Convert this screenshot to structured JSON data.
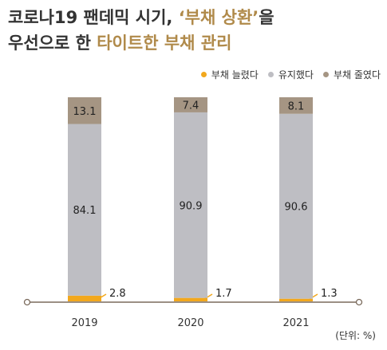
{
  "title": {
    "line1_plain": "코로나19 팬데믹 시기, ",
    "line1_accent": "‘부채 상환’",
    "line1_suffix": "을",
    "line2_plain": "우선으로 한 ",
    "line2_accent": "타이트한 부채 관리"
  },
  "unit_label": "(단위: %)",
  "colors": {
    "increased": "#f2a81d",
    "maintained": "#bebec3",
    "decreased": "#a59583",
    "accent": "#b08a4a",
    "axis": "#7a6a5c"
  },
  "chart_data": {
    "type": "bar",
    "stacked": true,
    "categories": [
      "2019",
      "2020",
      "2021"
    ],
    "series": [
      {
        "name": "부채 늘렸다",
        "values": [
          2.8,
          1.7,
          1.3
        ]
      },
      {
        "name": "유지했다",
        "values": [
          84.1,
          90.9,
          90.6
        ]
      },
      {
        "name": "부채 줄였다",
        "values": [
          13.1,
          7.4,
          8.1
        ]
      }
    ],
    "ylim": [
      0,
      100
    ],
    "legend_position": "top-right",
    "grid": false
  }
}
